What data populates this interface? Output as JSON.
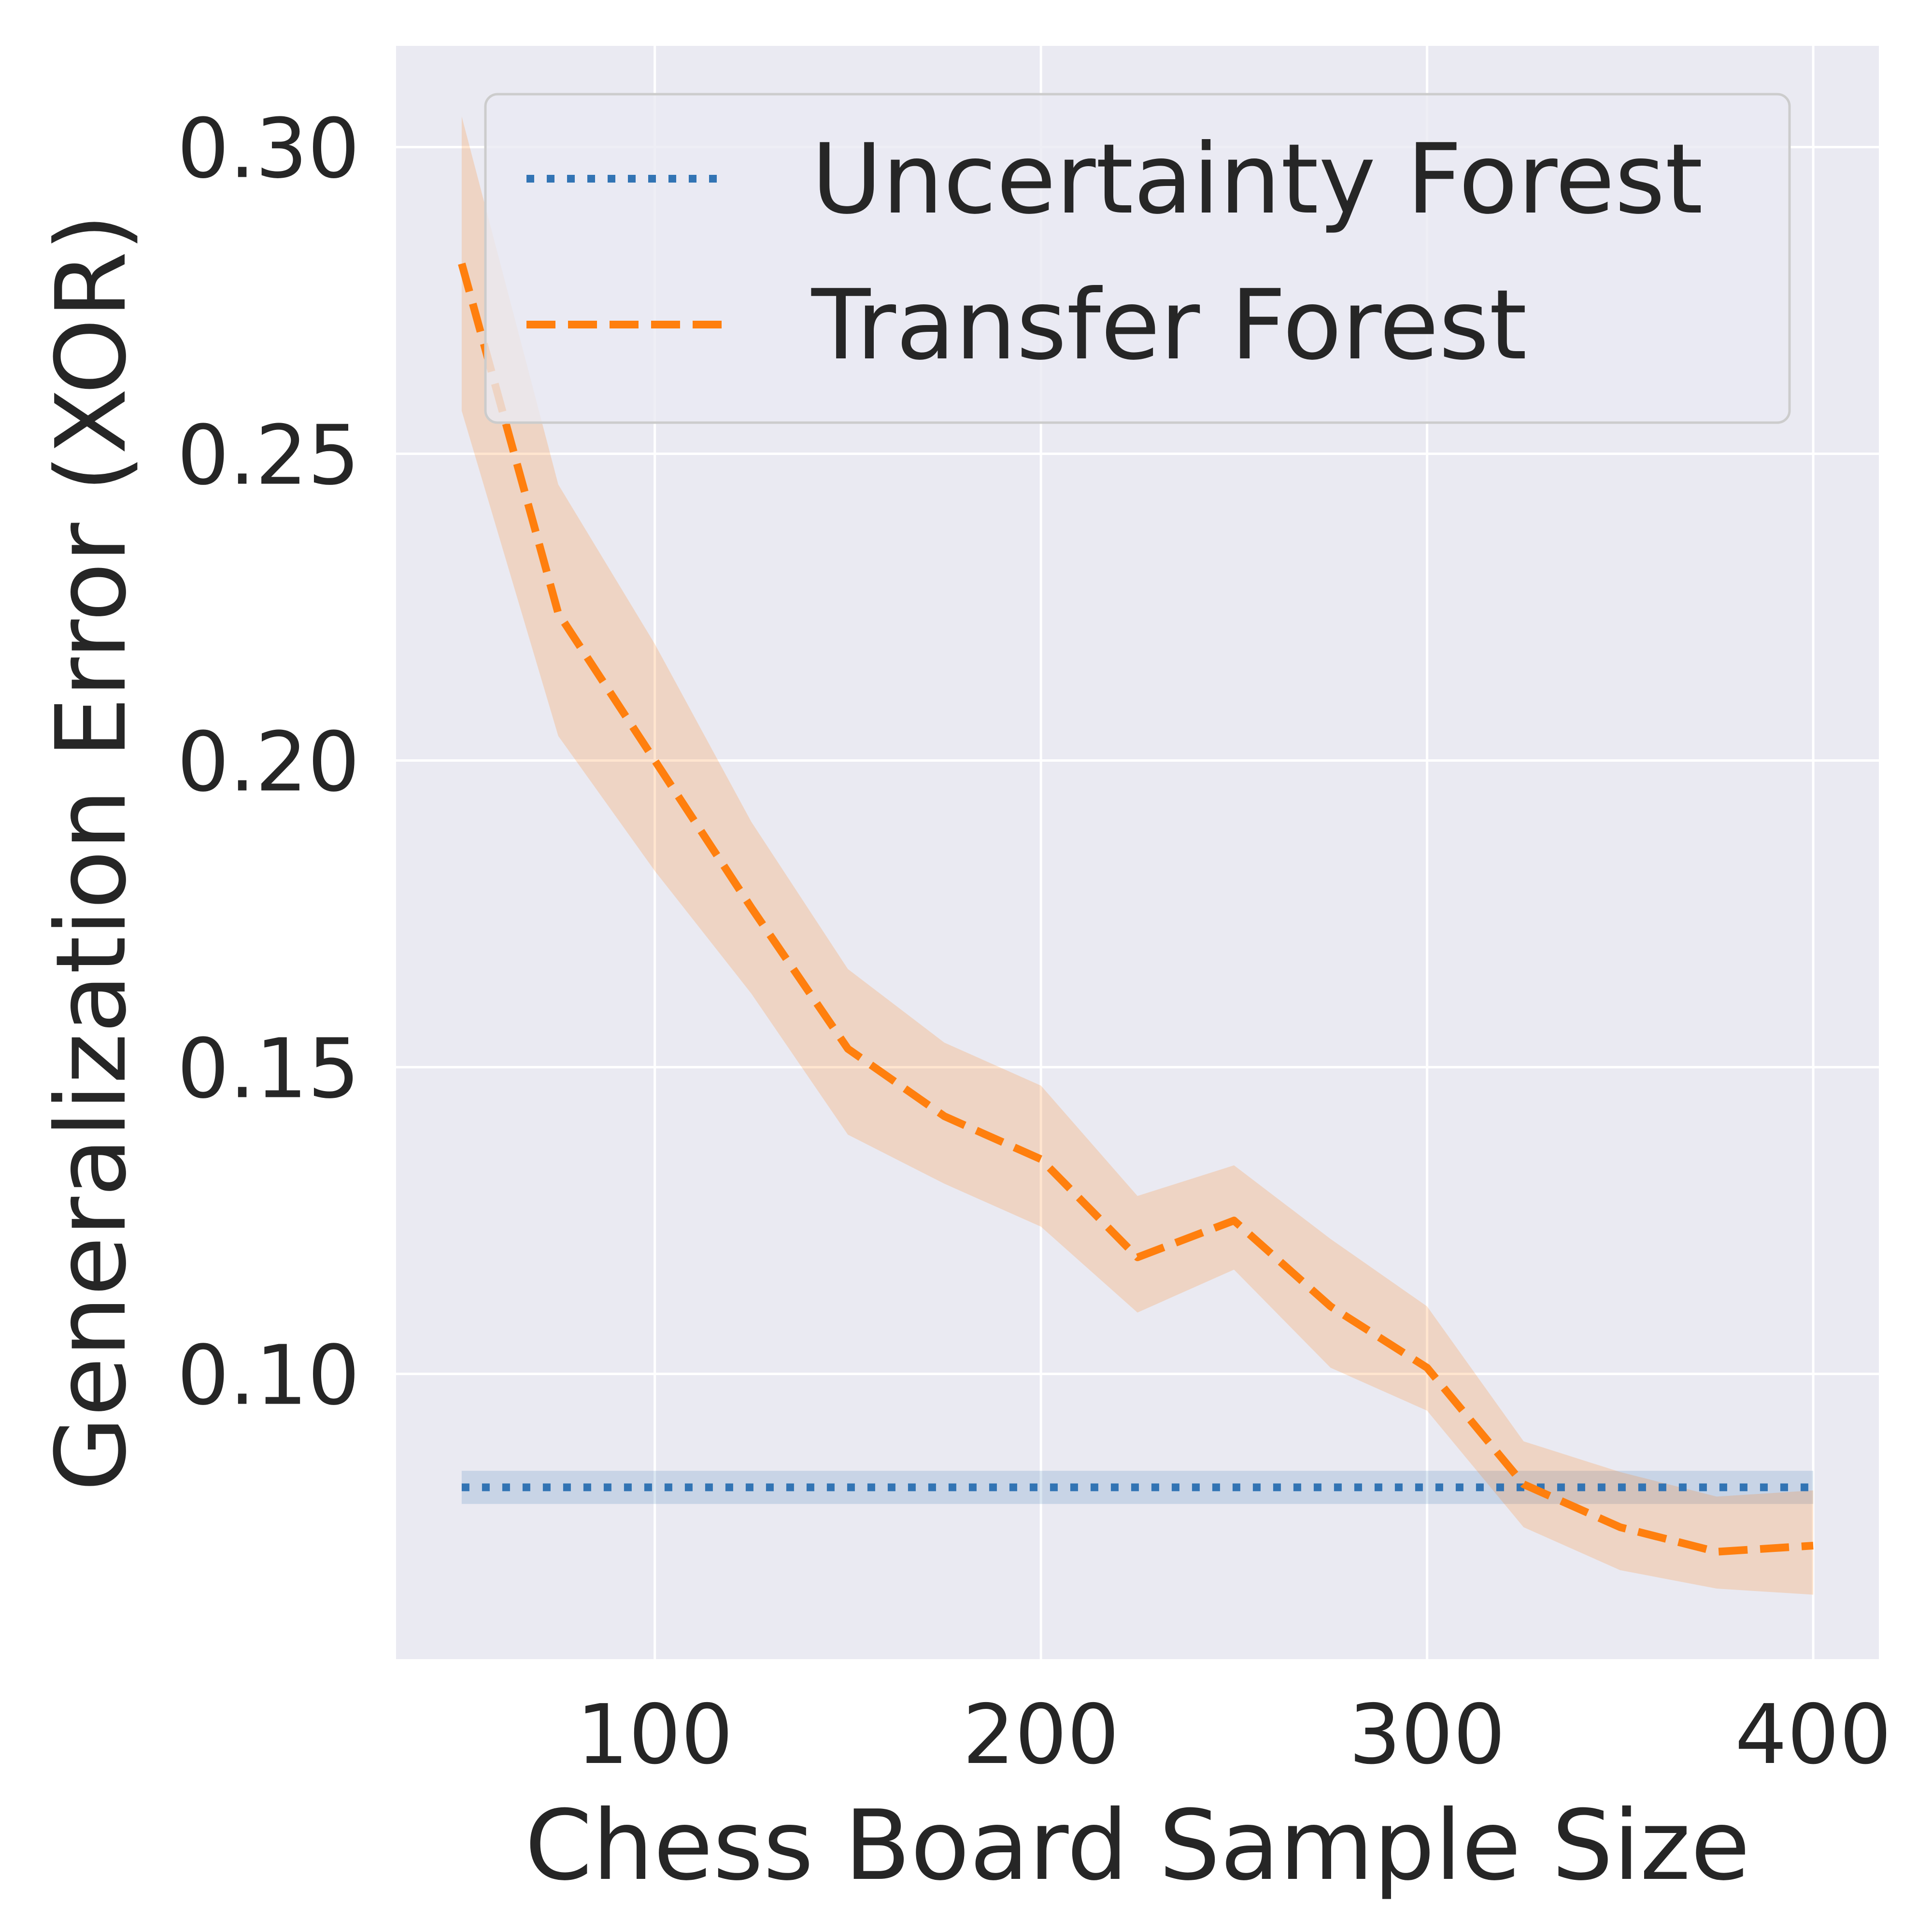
{
  "chart_data": {
    "type": "line",
    "title": "",
    "xlabel": "Chess Board Sample Size",
    "ylabel": "Generalization Error (XOR)",
    "xlim": [
      33,
      417
    ],
    "ylim": [
      0.0535,
      0.3165
    ],
    "x_ticks": [
      100,
      200,
      300,
      400
    ],
    "x_tick_labels": [
      "100",
      "200",
      "300",
      "400"
    ],
    "y_ticks": [
      0.1,
      0.15,
      0.2,
      0.25,
      0.3
    ],
    "y_tick_labels": [
      "0.10",
      "0.15",
      "0.20",
      "0.25",
      "0.30"
    ],
    "grid": true,
    "legend_position": "top-right",
    "series": [
      {
        "name": "Uncertainty Forest",
        "style": "dotted",
        "color": "#3274b4",
        "band_color": "#3274b4",
        "x": [
          50,
          400
        ],
        "y": [
          0.0815,
          0.0815
        ],
        "lower": [
          0.0788,
          0.0788
        ],
        "upper": [
          0.0842,
          0.0842
        ]
      },
      {
        "name": "Transfer Forest",
        "style": "dashed",
        "color": "#ff7f0e",
        "band_color": "#ff7f0e",
        "x": [
          50,
          75,
          100,
          125,
          150,
          175,
          200,
          225,
          250,
          275,
          300,
          325,
          350,
          375,
          400
        ],
        "y": [
          0.281,
          0.224,
          0.2,
          0.176,
          0.153,
          0.142,
          0.135,
          0.119,
          0.125,
          0.111,
          0.101,
          0.082,
          0.075,
          0.071,
          0.072
        ],
        "lower": [
          0.257,
          0.204,
          0.182,
          0.162,
          0.139,
          0.131,
          0.124,
          0.11,
          0.117,
          0.101,
          0.094,
          0.075,
          0.068,
          0.065,
          0.064
        ],
        "upper": [
          0.305,
          0.245,
          0.219,
          0.19,
          0.166,
          0.154,
          0.147,
          0.129,
          0.134,
          0.122,
          0.111,
          0.089,
          0.084,
          0.08,
          0.081
        ]
      }
    ]
  }
}
